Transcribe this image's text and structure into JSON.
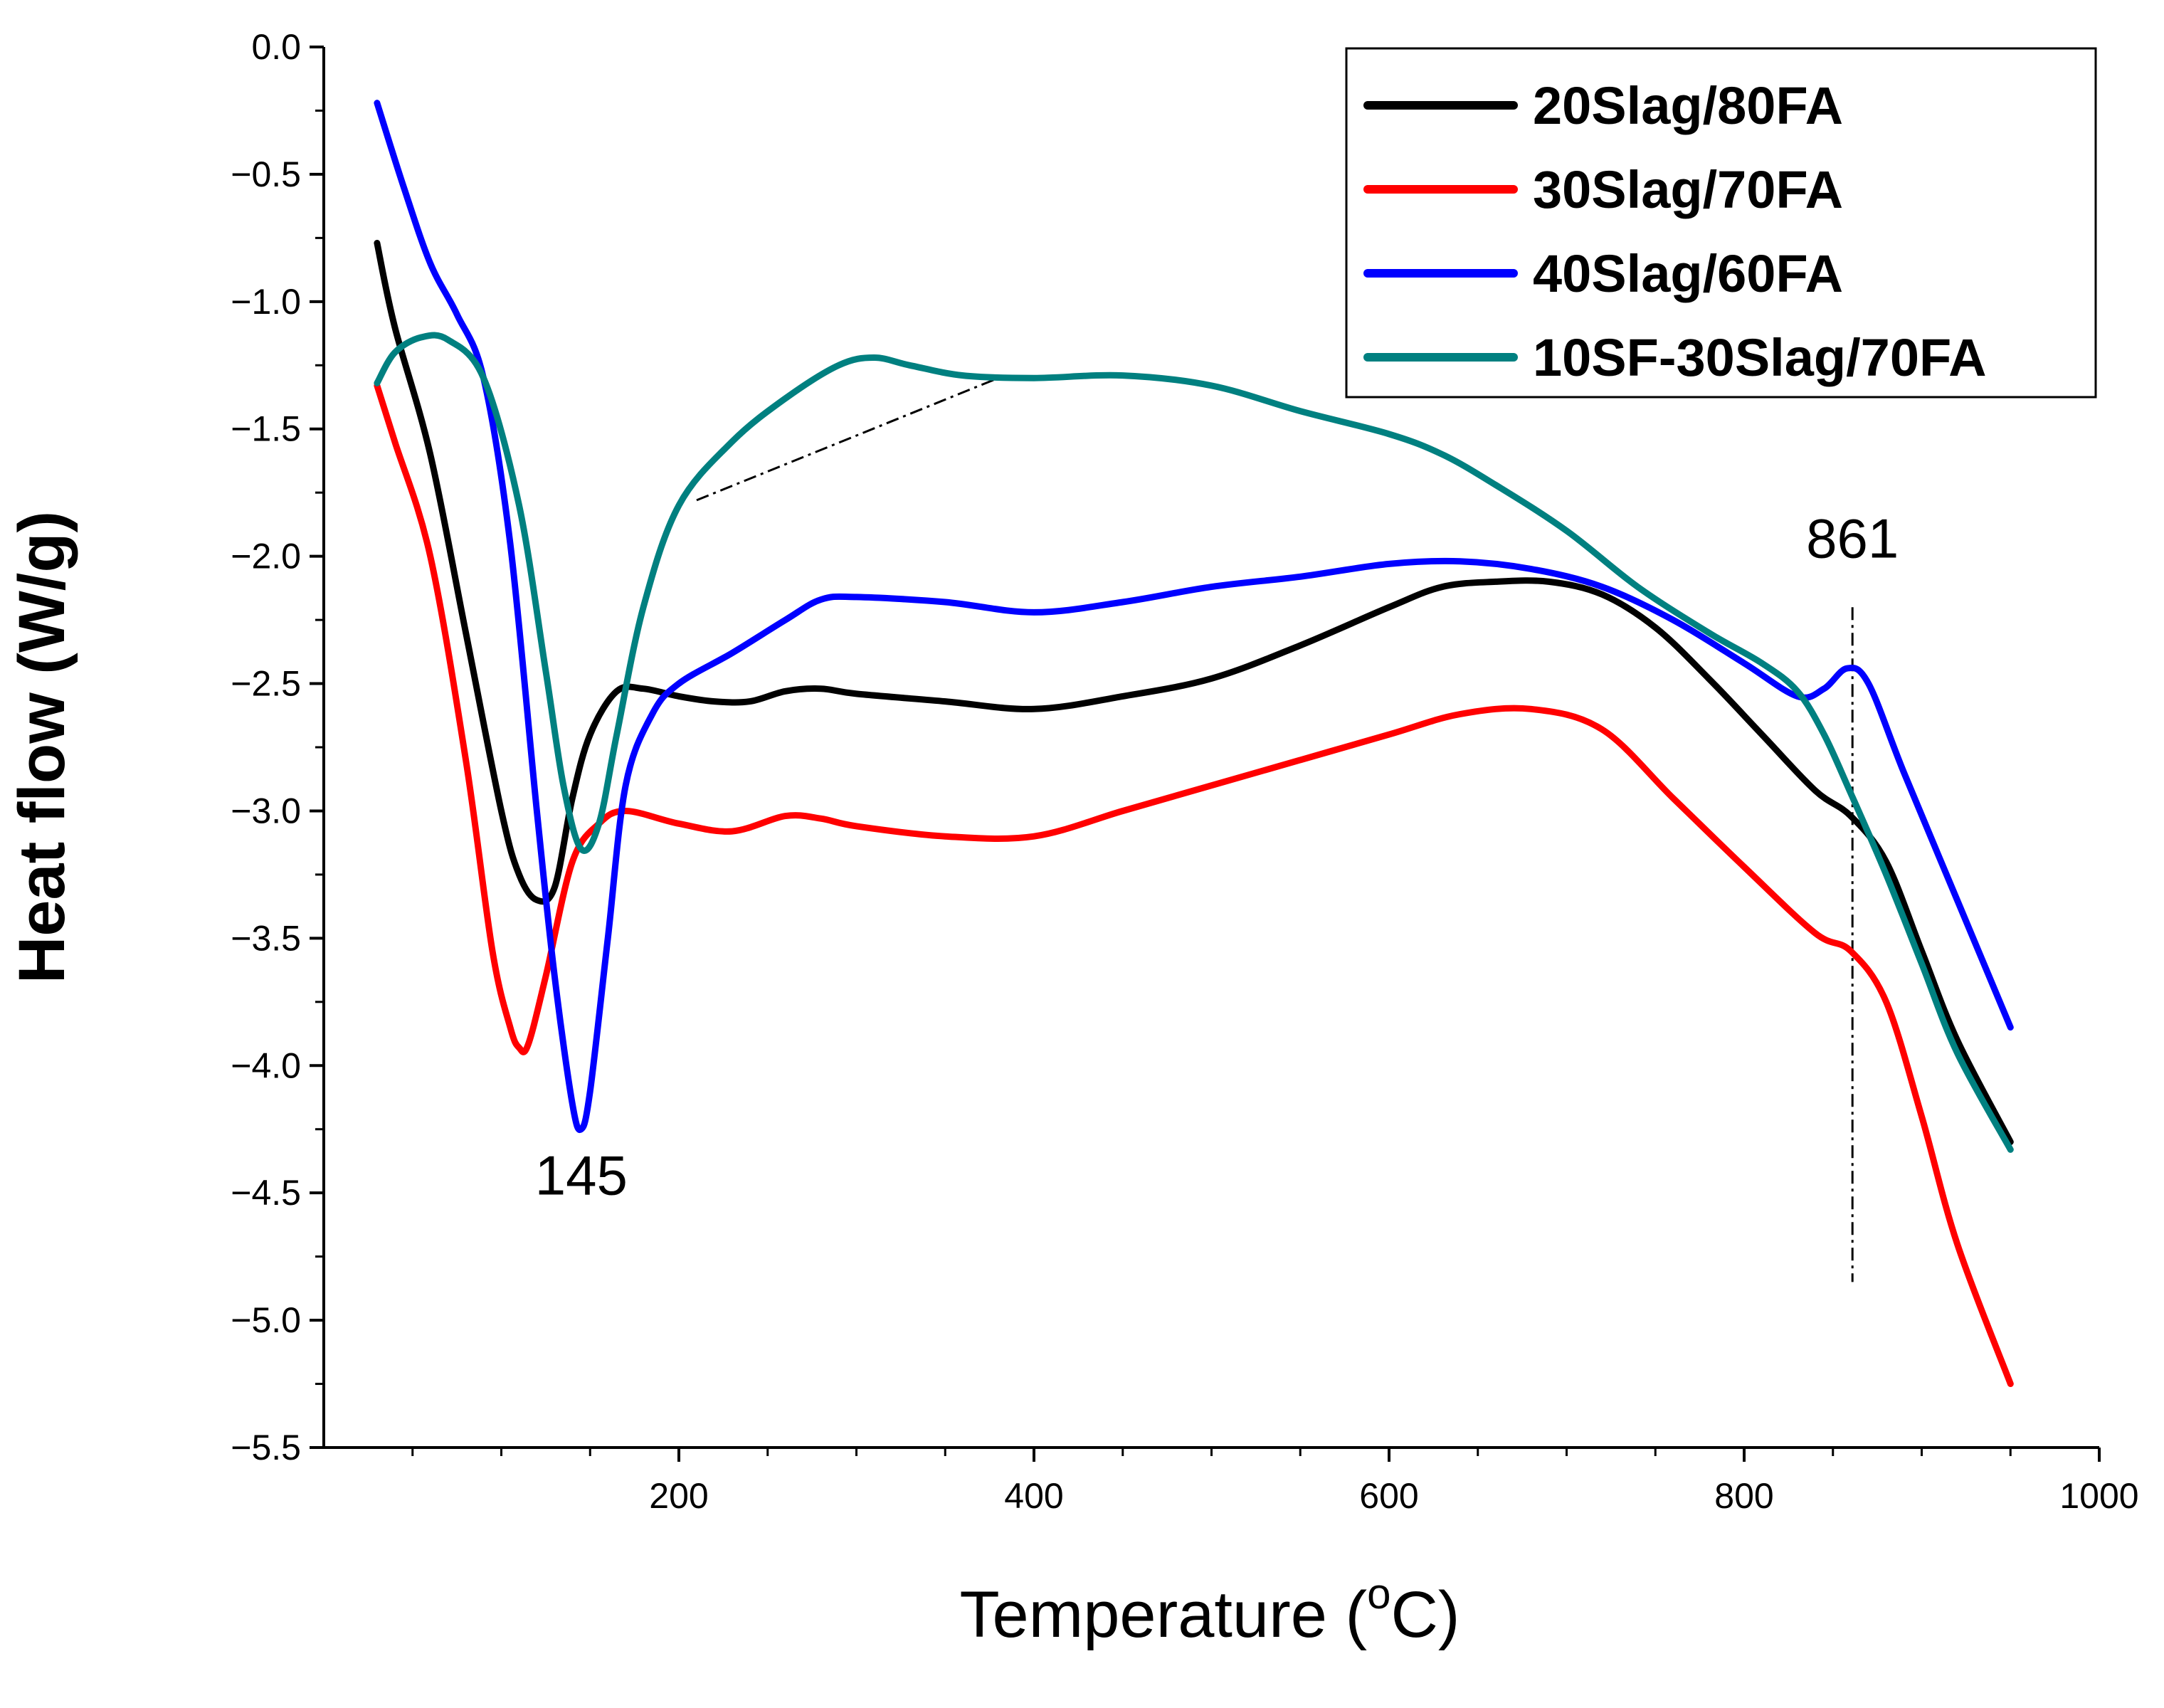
{
  "chart_data": {
    "type": "line",
    "title": "",
    "xlabel": "Temperature (",
    "xlabel_sup": "o",
    "xlabel_unit": "C)",
    "ylabel": "Heat flow (W/g)",
    "xlim": [
      0,
      1000
    ],
    "ylim": [
      -5.5,
      0.0
    ],
    "x_ticks": [
      200,
      400,
      600,
      800,
      1000
    ],
    "x_tick_labels": [
      "200",
      "400",
      "600",
      "800",
      "1000"
    ],
    "y_ticks": [
      0.0,
      -0.5,
      -1.0,
      -1.5,
      -2.0,
      -2.5,
      -3.0,
      -3.5,
      -4.0,
      -4.5,
      -5.0,
      -5.5
    ],
    "y_tick_labels": [
      "0.0",
      "−0.5",
      "−1.0",
      "−1.5",
      "−2.0",
      "−2.5",
      "−3.0",
      "−3.5",
      "−4.0",
      "−4.5",
      "−5.0",
      "−5.5"
    ],
    "legend_position": "top-right",
    "grid": false,
    "series": [
      {
        "name": "20Slag/80FA",
        "color": "#000000",
        "x": [
          30,
          40,
          60,
          80,
          100,
          110,
          120,
          130,
          140,
          150,
          165,
          180,
          200,
          220,
          240,
          260,
          280,
          300,
          350,
          400,
          450,
          500,
          550,
          600,
          630,
          660,
          690,
          720,
          750,
          780,
          810,
          840,
          860,
          880,
          900,
          920,
          950
        ],
        "y": [
          -0.77,
          -1.1,
          -1.6,
          -2.3,
          -3.0,
          -3.25,
          -3.35,
          -3.3,
          -2.95,
          -2.7,
          -2.53,
          -2.52,
          -2.55,
          -2.57,
          -2.57,
          -2.53,
          -2.52,
          -2.54,
          -2.57,
          -2.6,
          -2.55,
          -2.48,
          -2.35,
          -2.2,
          -2.12,
          -2.1,
          -2.1,
          -2.15,
          -2.28,
          -2.48,
          -2.7,
          -2.92,
          -3.02,
          -3.2,
          -3.55,
          -3.9,
          -4.3
        ]
      },
      {
        "name": "30Slag/70FA",
        "color": "#ff0000",
        "x": [
          30,
          40,
          60,
          80,
          95,
          105,
          110,
          115,
          125,
          140,
          155,
          170,
          200,
          230,
          260,
          280,
          300,
          350,
          400,
          450,
          500,
          550,
          600,
          640,
          680,
          720,
          760,
          800,
          840,
          860,
          880,
          900,
          920,
          950
        ],
        "y": [
          -1.33,
          -1.55,
          -2.0,
          -2.8,
          -3.55,
          -3.85,
          -3.93,
          -3.92,
          -3.65,
          -3.2,
          -3.05,
          -3.0,
          -3.05,
          -3.08,
          -3.02,
          -3.03,
          -3.06,
          -3.1,
          -3.1,
          -3.0,
          -2.9,
          -2.8,
          -2.7,
          -2.62,
          -2.6,
          -2.68,
          -2.95,
          -3.22,
          -3.48,
          -3.55,
          -3.75,
          -4.2,
          -4.7,
          -5.25
        ]
      },
      {
        "name": "40Slag/60FA",
        "color": "#0000ff",
        "x": [
          30,
          45,
          60,
          75,
          90,
          105,
          120,
          130,
          140,
          145,
          150,
          160,
          170,
          185,
          200,
          230,
          260,
          280,
          300,
          350,
          400,
          450,
          500,
          550,
          600,
          640,
          680,
          720,
          760,
          800,
          830,
          845,
          858,
          870,
          890,
          920,
          950
        ],
        "y": [
          -0.22,
          -0.55,
          -0.85,
          -1.05,
          -1.3,
          -1.95,
          -3.0,
          -3.65,
          -4.15,
          -4.25,
          -4.1,
          -3.5,
          -2.9,
          -2.62,
          -2.5,
          -2.38,
          -2.25,
          -2.17,
          -2.16,
          -2.18,
          -2.22,
          -2.18,
          -2.12,
          -2.08,
          -2.03,
          -2.02,
          -2.05,
          -2.12,
          -2.25,
          -2.42,
          -2.55,
          -2.52,
          -2.44,
          -2.5,
          -2.85,
          -3.35,
          -3.85
        ]
      },
      {
        "name": "10SF-30Slag/70FA",
        "color": "#008080",
        "x": [
          30,
          40,
          55,
          70,
          90,
          110,
          125,
          135,
          145,
          155,
          165,
          180,
          200,
          230,
          260,
          290,
          310,
          330,
          360,
          400,
          450,
          500,
          550,
          600,
          630,
          660,
          700,
          740,
          780,
          810,
          830,
          845,
          860,
          880,
          900,
          920,
          950
        ],
        "y": [
          -1.32,
          -1.2,
          -1.14,
          -1.15,
          -1.3,
          -1.8,
          -2.45,
          -2.9,
          -3.15,
          -3.05,
          -2.7,
          -2.2,
          -1.8,
          -1.55,
          -1.38,
          -1.25,
          -1.22,
          -1.25,
          -1.29,
          -1.3,
          -1.29,
          -1.33,
          -1.43,
          -1.52,
          -1.6,
          -1.72,
          -1.9,
          -2.12,
          -2.3,
          -2.42,
          -2.53,
          -2.7,
          -2.93,
          -3.25,
          -3.6,
          -3.95,
          -4.33
        ]
      }
    ],
    "annotations": [
      {
        "text": "145",
        "x": 145,
        "y": -4.45
      },
      {
        "text": "861",
        "x": 861,
        "y": -1.95
      }
    ],
    "reference_lines": [
      {
        "style": "dash-dot",
        "x1": 861,
        "y1": -2.2,
        "x2": 861,
        "y2": -4.85
      },
      {
        "style": "dash-dot",
        "x1": 210,
        "y1": -1.78,
        "x2": 380,
        "y2": -1.3
      }
    ]
  }
}
